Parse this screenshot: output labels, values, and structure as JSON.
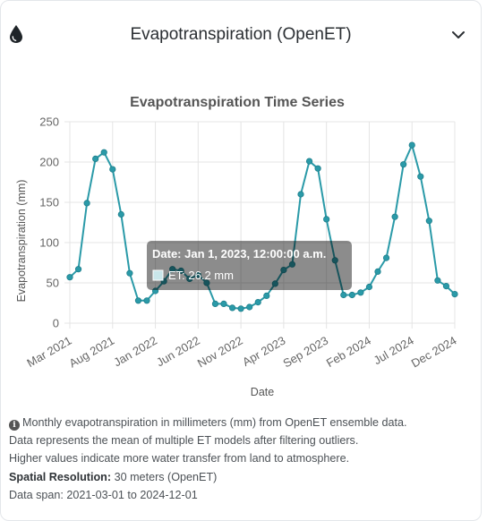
{
  "panel": {
    "title": "Evapotranspiration (OpenET)",
    "icon": "water-drop-icon",
    "toggle_icon": "chevron-down-icon"
  },
  "chart_data": {
    "type": "line",
    "title": "Evapotranspiration Time Series",
    "xlabel": "Date",
    "ylabel": "Evapotranspiration (mm)",
    "ylim": [
      0,
      250
    ],
    "yticks": [
      "0",
      "50",
      "100",
      "150",
      "200",
      "250"
    ],
    "xticks": [
      "Mar 2021",
      "Aug 2021",
      "Jan 2022",
      "Jun 2022",
      "Nov 2022",
      "Apr 2023",
      "Sep 2023",
      "Feb 2024",
      "Jul 2024",
      "Dec 2024"
    ],
    "grid": true,
    "line_color": "#2a9aa8",
    "x": [
      "2021-03",
      "2021-04",
      "2021-05",
      "2021-06",
      "2021-07",
      "2021-08",
      "2021-09",
      "2021-10",
      "2021-11",
      "2021-12",
      "2022-01",
      "2022-02",
      "2022-03",
      "2022-04",
      "2022-05",
      "2022-06",
      "2022-07",
      "2022-08",
      "2022-09",
      "2022-10",
      "2022-11",
      "2022-12",
      "2023-01",
      "2023-02",
      "2023-03",
      "2023-04",
      "2023-05",
      "2023-06",
      "2023-07",
      "2023-08",
      "2023-09",
      "2023-10",
      "2023-11",
      "2023-12",
      "2024-01",
      "2024-02",
      "2024-03",
      "2024-04",
      "2024-05",
      "2024-06",
      "2024-07",
      "2024-08",
      "2024-09",
      "2024-10",
      "2024-11",
      "2024-12"
    ],
    "values": [
      57,
      67,
      149,
      204,
      212,
      191,
      135,
      62,
      28,
      28,
      40,
      52,
      67,
      65,
      55,
      60,
      50,
      24,
      24,
      19,
      18,
      20,
      26,
      34,
      49,
      66,
      73,
      160,
      201,
      192,
      129,
      78,
      35,
      35,
      38,
      45,
      64,
      81,
      132,
      197,
      221,
      182,
      127,
      53,
      46,
      36
    ],
    "tooltip": {
      "title": "Date: Jan 1, 2023, 12:00:00 a.m.",
      "label": "ET: 26.2 mm"
    }
  },
  "info": {
    "icon": "info-circle-icon",
    "line1": "Monthly evapotranspiration in millimeters (mm) from OpenET ensemble data.",
    "line2": "Data represents the mean of multiple ET models after filtering outliers.",
    "line3": "Higher values indicate more water transfer from land to atmosphere.",
    "resolution_label": "Spatial Resolution:",
    "resolution_value": "30 meters (OpenET)",
    "data_span": "Data span: 2021-03-01 to 2024-12-01"
  }
}
